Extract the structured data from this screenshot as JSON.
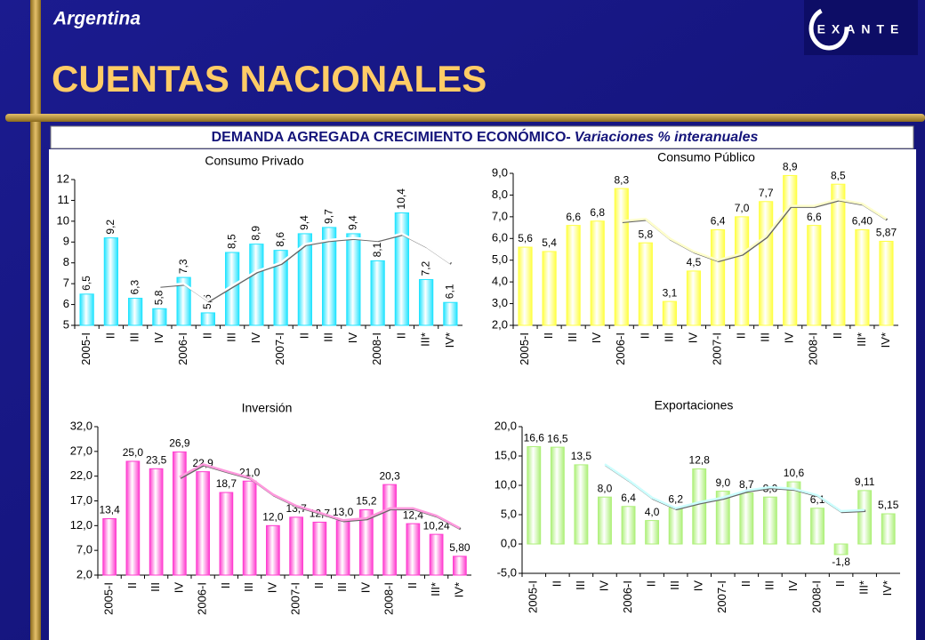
{
  "header": {
    "region": "Argentina",
    "title": "CUENTAS NACIONALES",
    "logo": "EXANTE",
    "subtitle": "DEMANDA AGREGADA CRECIMIENTO ECONÓMICO-",
    "subtitle_italic": "Variaciones % interanuales"
  },
  "chart_data": [
    {
      "type": "bar",
      "title": "Consumo Privado",
      "vertical_labels": true,
      "categories": [
        "2005-I",
        "II",
        "III",
        "IV",
        "2006-I",
        "II",
        "III",
        "IV",
        "2007-I",
        "II",
        "III",
        "IV",
        "2008-I",
        "II",
        "III*",
        "IV*"
      ],
      "series": [
        {
          "color": "#22e4ff",
          "values": [
            6.5,
            9.2,
            6.3,
            5.8,
            7.3,
            5.6,
            8.5,
            8.9,
            8.6,
            9.4,
            9.7,
            9.4,
            8.1,
            10.4,
            7.2,
            6.1
          ],
          "value_labels": [
            "6,5",
            "9,2",
            "6,3",
            "5,8",
            "7,3",
            "5,6",
            "8,5",
            "8,9",
            "8,6",
            "9,4",
            "9,7",
            "9,4",
            "8,1",
            "10,4",
            "7,2",
            "6,1"
          ]
        },
        {
          "type": "line",
          "color": "#ffffff",
          "values": [
            null,
            null,
            null,
            6.9,
            7.0,
            6.2,
            6.9,
            7.6,
            8.0,
            8.9,
            9.1,
            9.2,
            9.1,
            9.4,
            8.8,
            8.0
          ]
        }
      ],
      "ylim": [
        5,
        12
      ],
      "yticks": [
        5,
        6,
        7,
        8,
        9,
        10,
        11,
        12
      ]
    },
    {
      "type": "bar",
      "title": "Consumo Público",
      "vertical_labels": false,
      "categories": [
        "2005-I",
        "II",
        "III",
        "IV",
        "2006-I",
        "II",
        "III",
        "IV",
        "2007-I",
        "II",
        "III",
        "IV",
        "2008-I",
        "II",
        "III*",
        "IV*"
      ],
      "series": [
        {
          "color": "#ffff44",
          "values": [
            5.6,
            5.4,
            6.6,
            6.8,
            8.3,
            5.8,
            3.1,
            4.5,
            6.4,
            7.0,
            7.7,
            8.9,
            6.6,
            8.5,
            6.4,
            5.87
          ],
          "value_labels": [
            "5,6",
            "5,4",
            "6,6",
            "6,8",
            "8,3",
            "5,8",
            "3,1",
            "4,5",
            "6,4",
            "7,0",
            "7,7",
            "8,9",
            "6,6",
            "8,5",
            "6,40",
            "5,87"
          ]
        },
        {
          "type": "line",
          "color": "#ffffcc",
          "values": [
            null,
            null,
            null,
            null,
            6.8,
            6.9,
            6.0,
            5.4,
            5.0,
            5.3,
            6.1,
            7.5,
            7.5,
            7.8,
            7.6,
            6.9
          ]
        }
      ],
      "ylim": [
        2,
        9
      ],
      "yticks": [
        {
          "value": 2,
          "label": "2,0"
        },
        {
          "value": 3,
          "label": "3,0"
        },
        {
          "value": 4,
          "label": "4,0"
        },
        {
          "value": 5,
          "label": "5,0"
        },
        {
          "value": 6,
          "label": "6,0"
        },
        {
          "value": 7,
          "label": "7,0"
        },
        {
          "value": 8,
          "label": "8,0"
        },
        {
          "value": 9,
          "label": "9,0"
        }
      ]
    },
    {
      "type": "bar",
      "title": "Inversión",
      "vertical_labels": false,
      "categories": [
        "2005-I",
        "II",
        "III",
        "IV",
        "2006-I",
        "II",
        "III",
        "IV",
        "2007-I",
        "II",
        "III",
        "IV",
        "2008-I",
        "II",
        "III*",
        "IV*"
      ],
      "series": [
        {
          "color": "#ff3ccf",
          "values": [
            13.4,
            25.0,
            23.5,
            26.9,
            22.9,
            18.7,
            21.0,
            12.0,
            13.7,
            12.7,
            13.0,
            15.2,
            20.3,
            12.4,
            10.24,
            5.8
          ],
          "value_labels": [
            "13,4",
            "25,0",
            "23,5",
            "26,9",
            "22,9",
            "18,7",
            "21,0",
            "12,0",
            "13,7",
            "12,7",
            "13,0",
            "15,2",
            "20,3",
            "12,4",
            "10,24",
            "5,80"
          ]
        },
        {
          "type": "line",
          "color": "#ff99dd",
          "values": [
            null,
            null,
            null,
            21.8,
            24.4,
            23.0,
            21.7,
            18.3,
            16.0,
            14.6,
            13.1,
            13.5,
            15.5,
            15.5,
            14.0,
            11.5
          ]
        }
      ],
      "ylim": [
        2,
        32
      ],
      "yticks": [
        {
          "value": 2,
          "label": "2,0"
        },
        {
          "value": 7,
          "label": "7,0"
        },
        {
          "value": 12,
          "label": "12,0"
        },
        {
          "value": 17,
          "label": "17,0"
        },
        {
          "value": 22,
          "label": "22,0"
        },
        {
          "value": 27,
          "label": "27,0"
        },
        {
          "value": 32,
          "label": "32,0"
        }
      ]
    },
    {
      "type": "bar",
      "title": "Exportaciones",
      "vertical_labels": false,
      "categories": [
        "2005-I",
        "II",
        "III",
        "IV",
        "2006-I",
        "II",
        "III",
        "IV",
        "2007-I",
        "II",
        "III",
        "IV",
        "2008-I",
        "II",
        "III*",
        "IV*"
      ],
      "series": [
        {
          "color": "#aef07a",
          "values": [
            16.6,
            16.5,
            13.5,
            8.0,
            6.4,
            4.0,
            6.2,
            12.8,
            9.0,
            8.7,
            8.0,
            10.6,
            6.1,
            -1.8,
            9.11,
            5.15
          ],
          "value_labels": [
            "16,6",
            "16,5",
            "13,5",
            "8,0",
            "6,4",
            "4,0",
            "6,2",
            "12,8",
            "9,0",
            "8,7",
            "8,0",
            "10,6",
            "6,1",
            "-1,8",
            "9,11",
            "5,15"
          ]
        },
        {
          "type": "line",
          "color": "#ccffff",
          "values": [
            null,
            null,
            null,
            13.6,
            10.9,
            7.9,
            6.1,
            7.1,
            7.9,
            9.1,
            9.7,
            9.4,
            8.3,
            5.6,
            5.8,
            null
          ]
        }
      ],
      "ylim": [
        -5,
        20
      ],
      "yticks": [
        {
          "value": -5,
          "label": "-5,0"
        },
        {
          "value": 0,
          "label": "0,0"
        },
        {
          "value": 5,
          "label": "5,0"
        },
        {
          "value": 10,
          "label": "10,0"
        },
        {
          "value": 15,
          "label": "15,0"
        },
        {
          "value": 20,
          "label": "20,0"
        }
      ]
    }
  ]
}
